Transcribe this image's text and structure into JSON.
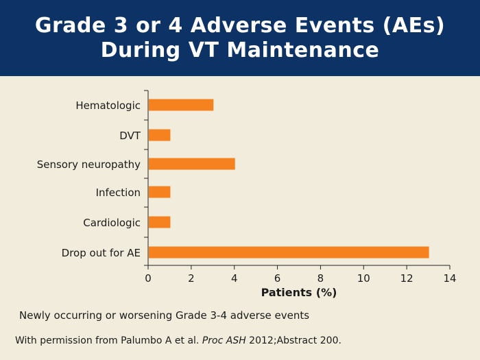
{
  "header": {
    "title_line1": "Grade 3 or 4 Adverse Events (AEs)",
    "title_line2": "During VT Maintenance"
  },
  "colors": {
    "header_bg": "#0d3265",
    "background": "#f1ecdb",
    "bar": "#f5821f"
  },
  "chart_data": {
    "type": "bar",
    "orientation": "horizontal",
    "categories": [
      "Hematologic",
      "DVT",
      "Sensory neuropathy",
      "Infection",
      "Cardiologic",
      "Drop out for AE"
    ],
    "values": [
      3,
      1,
      4,
      1,
      1,
      13
    ],
    "xlabel": "Patients (%)",
    "ylabel": "",
    "xlim": [
      0,
      14
    ],
    "xticks": [
      0,
      2,
      4,
      6,
      8,
      10,
      12,
      14
    ],
    "grid": false
  },
  "footnote": "Newly occurring or worsening Grade 3-4 adverse events",
  "citation": {
    "prefix": "With permission from Palumbo A et al. ",
    "journal": "Proc ASH",
    "suffix": " 2012;Abstract 200."
  }
}
